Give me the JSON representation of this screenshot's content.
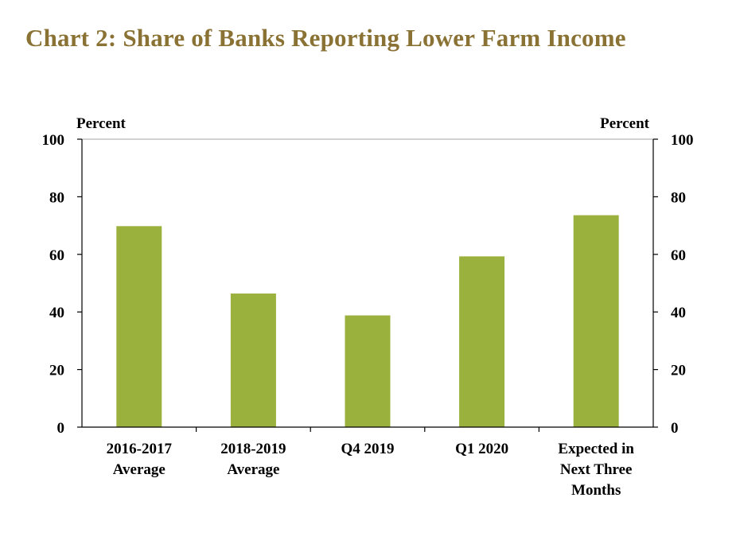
{
  "title": "Chart 2: Share of Banks Reporting Lower Farm Income",
  "colors": {
    "bar": "#9bb13e",
    "title": "#8a7234",
    "axis": "#000000"
  },
  "chart_data": {
    "type": "bar",
    "title": "Chart 2: Share of Banks Reporting Lower Farm Income",
    "ylabel_left": "Percent",
    "ylabel_right": "Percent",
    "ylim": [
      0,
      100
    ],
    "yticks": [
      0,
      20,
      40,
      60,
      80,
      100
    ],
    "grid": false,
    "legend": "none",
    "categories": [
      [
        "2016-2017",
        "Average"
      ],
      [
        "2018-2019",
        "Average"
      ],
      [
        "Q4 2019"
      ],
      [
        "Q1 2020"
      ],
      [
        "Expected in",
        "Next Three",
        "Months"
      ]
    ],
    "values": [
      69.8,
      46.4,
      38.8,
      59.3,
      73.6
    ]
  }
}
